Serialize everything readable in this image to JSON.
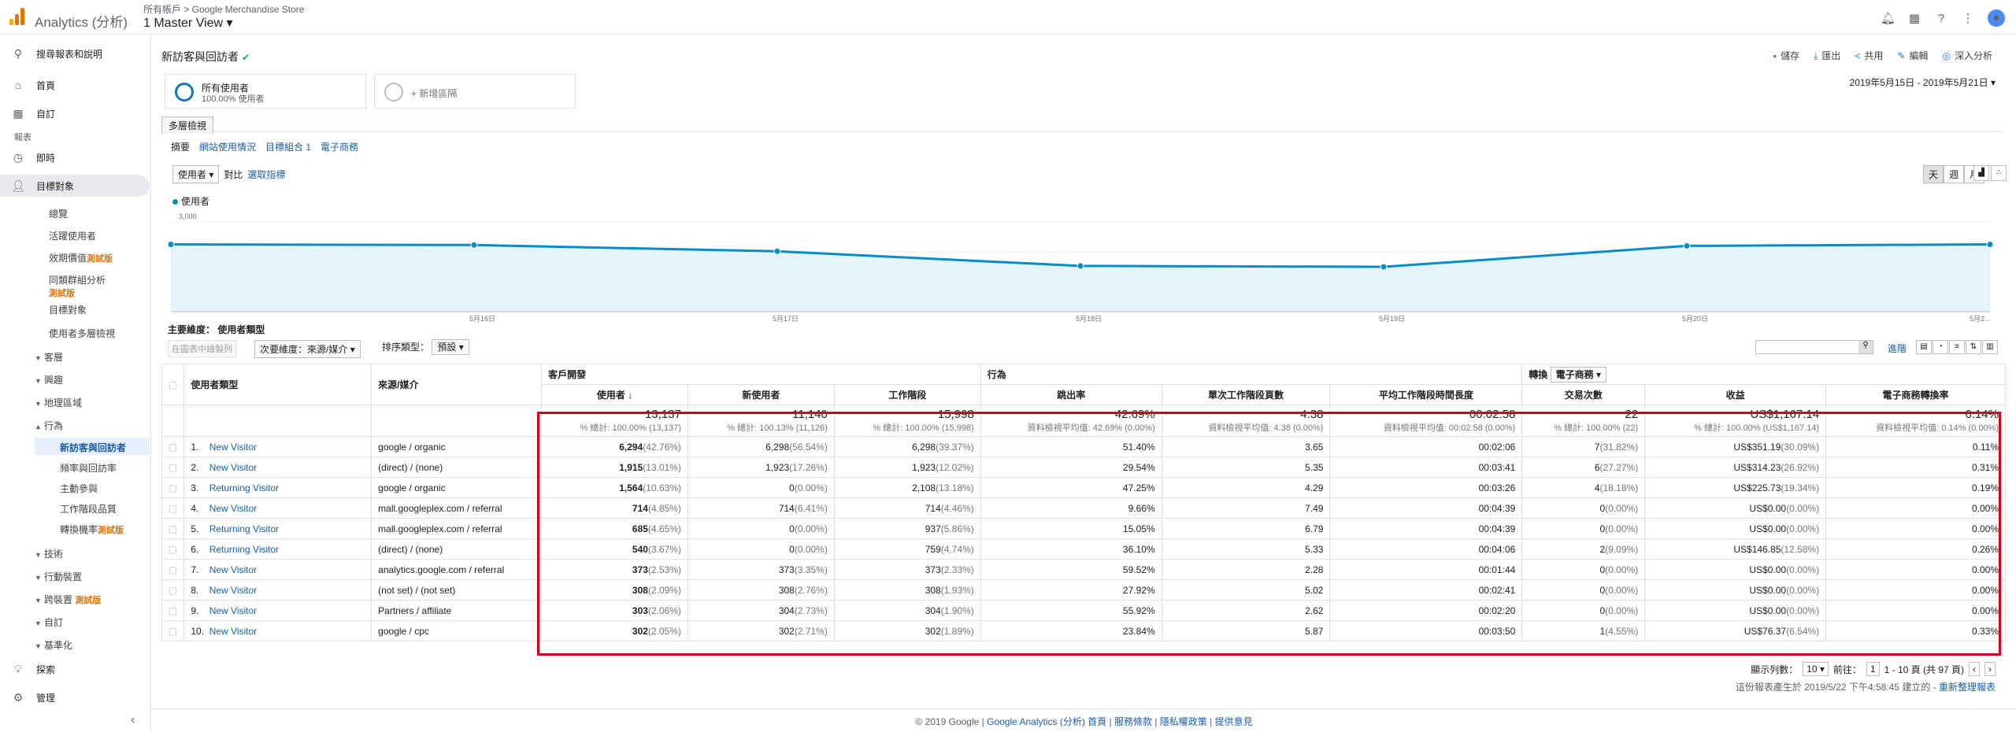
{
  "topbar": {
    "app_name": "Analytics (分析)",
    "account_path": "所有帳戶 > Google Merchandise Store",
    "view_name": "1 Master View",
    "avatar_initial": ""
  },
  "sidebar": {
    "search": "搜尋報表和說明",
    "home": "首頁",
    "custom": "自訂",
    "reports_label": "報表",
    "realtime": "即時",
    "audience": "目標對象",
    "audience_items": [
      "總覽",
      "活躍使用者",
      "效期價值",
      "同類群組分析",
      "目標對象",
      "使用者多層檢視"
    ],
    "beta": "測試版",
    "expandables": [
      "客層",
      "興趣",
      "地理區域",
      "行為"
    ],
    "behavior_items": [
      "新訪客與回訪者",
      "頻率與回訪率",
      "主動參與",
      "工作階段品質",
      "轉換機率"
    ],
    "lower_expandables": [
      "技術",
      "行動裝置",
      "跨裝置",
      "自訂",
      "基準化"
    ],
    "discover": "探索",
    "admin": "管理",
    "collapse": "‹"
  },
  "report": {
    "title": "新訪客與回訪者",
    "actions": [
      "儲存",
      "匯出",
      "共用",
      "編輯",
      "深入分析"
    ],
    "segment1_title": "所有使用者",
    "segment1_sub": "100.00% 使用者",
    "segment2_label": "+ 新增區隔",
    "date_range": "2019年5月15日 - 2019年5月21日",
    "tab": "多層檢視",
    "subtabs": [
      "摘要",
      "網站使用情況",
      "目標組合 1",
      "電子商務"
    ],
    "metric": "使用者",
    "vs": "對比",
    "select_metric": "選取指標",
    "granularity": [
      "天",
      "週",
      "月"
    ]
  },
  "chart_data": {
    "type": "line",
    "series": [
      {
        "name": "使用者",
        "values": [
          2250,
          2230,
          2020,
          1530,
          1500,
          2200,
          2250
        ]
      }
    ],
    "x": [
      "",
      "5月16日",
      "5月17日",
      "5月18日",
      "5月19日",
      "5月20日",
      "5月2..."
    ],
    "yticks": [
      "3,000",
      "2,000",
      "1,000"
    ],
    "ylim": [
      0,
      3000
    ],
    "color": "#058dc7",
    "fill": "#e5f3fa"
  },
  "table": {
    "primary_dim_label": "主要維度：",
    "primary_dim_value": "使用者類型",
    "plot_rows": "在圖表中繪製列",
    "secondary_dim": "次要維度：來源/媒介",
    "sort_label": "排序類型：",
    "sort_value": "預設",
    "advanced": "進階",
    "col_user_type": "使用者類型",
    "col_source": "來源/媒介",
    "group_acq": "客戶開發",
    "group_behavior": "行為",
    "group_conv": "轉換",
    "conv_select": "電子商務",
    "metric_headers": [
      "使用者",
      "新使用者",
      "工作階段",
      "跳出率",
      "單次工作階段頁數",
      "平均工作階段時間長度",
      "交易次數",
      "收益",
      "電子商務轉換率"
    ],
    "totals": [
      {
        "big": "13,137",
        "small": "% 總計: 100.00% (13,137)"
      },
      {
        "big": "11,140",
        "small": "% 總計: 100.13% (11,126)"
      },
      {
        "big": "15,998",
        "small": "% 總計: 100.00% (15,998)"
      },
      {
        "big": "42.69%",
        "small": "資料檢視平均值: 42.69% (0.00%)"
      },
      {
        "big": "4.38",
        "small": "資料檢視平均值: 4.38 (0.00%)"
      },
      {
        "big": "00:02:58",
        "small": "資料檢視平均值: 00:02:58 (0.00%)"
      },
      {
        "big": "22",
        "small": "% 總計: 100.00% (22)"
      },
      {
        "big": "US$1,167.14",
        "small": "% 總計: 100.00% (US$1,167.14)"
      },
      {
        "big": "0.14%",
        "small": "資料檢視平均值: 0.14% (0.00%)"
      }
    ],
    "rows": [
      {
        "idx": "1.",
        "type": "New Visitor",
        "src": "google / organic",
        "users": "6,294",
        "users_p": "(42.76%)",
        "new": "6,298",
        "new_p": "(56.54%)",
        "sess": "6,298",
        "sess_p": "(39.37%)",
        "bounce": "51.40%",
        "pps": "3.65",
        "dur": "00:02:06",
        "tx": "7",
        "tx_p": "(31.82%)",
        "rev": "US$351.19",
        "rev_p": "(30.09%)",
        "cr": "0.11%"
      },
      {
        "idx": "2.",
        "type": "New Visitor",
        "src": "(direct) / (none)",
        "users": "1,915",
        "users_p": "(13.01%)",
        "new": "1,923",
        "new_p": "(17.26%)",
        "sess": "1,923",
        "sess_p": "(12.02%)",
        "bounce": "29.54%",
        "pps": "5.35",
        "dur": "00:03:41",
        "tx": "6",
        "tx_p": "(27.27%)",
        "rev": "US$314.23",
        "rev_p": "(26.92%)",
        "cr": "0.31%"
      },
      {
        "idx": "3.",
        "type": "Returning Visitor",
        "src": "google / organic",
        "users": "1,564",
        "users_p": "(10.63%)",
        "new": "0",
        "new_p": "(0.00%)",
        "sess": "2,108",
        "sess_p": "(13.18%)",
        "bounce": "47.25%",
        "pps": "4.29",
        "dur": "00:03:26",
        "tx": "4",
        "tx_p": "(18.18%)",
        "rev": "US$225.73",
        "rev_p": "(19.34%)",
        "cr": "0.19%"
      },
      {
        "idx": "4.",
        "type": "New Visitor",
        "src": "mall.googleplex.com / referral",
        "users": "714",
        "users_p": "(4.85%)",
        "new": "714",
        "new_p": "(6.41%)",
        "sess": "714",
        "sess_p": "(4.46%)",
        "bounce": "9.66%",
        "pps": "7.49",
        "dur": "00:04:39",
        "tx": "0",
        "tx_p": "(0.00%)",
        "rev": "US$0.00",
        "rev_p": "(0.00%)",
        "cr": "0.00%"
      },
      {
        "idx": "5.",
        "type": "Returning Visitor",
        "src": "mall.googleplex.com / referral",
        "users": "685",
        "users_p": "(4.65%)",
        "new": "0",
        "new_p": "(0.00%)",
        "sess": "937",
        "sess_p": "(5.86%)",
        "bounce": "15.05%",
        "pps": "6.79",
        "dur": "00:04:39",
        "tx": "0",
        "tx_p": "(0.00%)",
        "rev": "US$0.00",
        "rev_p": "(0.00%)",
        "cr": "0.00%"
      },
      {
        "idx": "6.",
        "type": "Returning Visitor",
        "src": "(direct) / (none)",
        "users": "540",
        "users_p": "(3.67%)",
        "new": "0",
        "new_p": "(0.00%)",
        "sess": "759",
        "sess_p": "(4.74%)",
        "bounce": "36.10%",
        "pps": "5.33",
        "dur": "00:04:06",
        "tx": "2",
        "tx_p": "(9.09%)",
        "rev": "US$146.85",
        "rev_p": "(12.58%)",
        "cr": "0.26%"
      },
      {
        "idx": "7.",
        "type": "New Visitor",
        "src": "analytics.google.com / referral",
        "users": "373",
        "users_p": "(2.53%)",
        "new": "373",
        "new_p": "(3.35%)",
        "sess": "373",
        "sess_p": "(2.33%)",
        "bounce": "59.52%",
        "pps": "2.28",
        "dur": "00:01:44",
        "tx": "0",
        "tx_p": "(0.00%)",
        "rev": "US$0.00",
        "rev_p": "(0.00%)",
        "cr": "0.00%"
      },
      {
        "idx": "8.",
        "type": "New Visitor",
        "src": "(not set) / (not set)",
        "users": "308",
        "users_p": "(2.09%)",
        "new": "308",
        "new_p": "(2.76%)",
        "sess": "308",
        "sess_p": "(1.93%)",
        "bounce": "27.92%",
        "pps": "5.02",
        "dur": "00:02:41",
        "tx": "0",
        "tx_p": "(0.00%)",
        "rev": "US$0.00",
        "rev_p": "(0.00%)",
        "cr": "0.00%"
      },
      {
        "idx": "9.",
        "type": "New Visitor",
        "src": "Partners / affiliate",
        "users": "303",
        "users_p": "(2.06%)",
        "new": "304",
        "new_p": "(2.73%)",
        "sess": "304",
        "sess_p": "(1.90%)",
        "bounce": "55.92%",
        "pps": "2.62",
        "dur": "00:02:20",
        "tx": "0",
        "tx_p": "(0.00%)",
        "rev": "US$0.00",
        "rev_p": "(0.00%)",
        "cr": "0.00%"
      },
      {
        "idx": "10.",
        "type": "New Visitor",
        "src": "google / cpc",
        "users": "302",
        "users_p": "(2.05%)",
        "new": "302",
        "new_p": "(2.71%)",
        "sess": "302",
        "sess_p": "(1.89%)",
        "bounce": "23.84%",
        "pps": "5.87",
        "dur": "00:03:50",
        "tx": "1",
        "tx_p": "(4.55%)",
        "rev": "US$76.37",
        "rev_p": "(6.54%)",
        "cr": "0.33%"
      }
    ],
    "pager_show": "顯示列數：",
    "pager_rows": "10",
    "pager_goto": "前往：",
    "pager_page": "1",
    "pager_range": "1 - 10 頁 (共 97 頁)",
    "generated": "這份報表產生於 2019/5/22 下午4:58:45 建立的 - ",
    "refresh": "重新整理報表"
  },
  "footer": {
    "copyright": "© 2019 Google |",
    "links": [
      "Google Analytics (分析) 首頁",
      "服務條款",
      "隱私權政策",
      "提供意見"
    ]
  }
}
